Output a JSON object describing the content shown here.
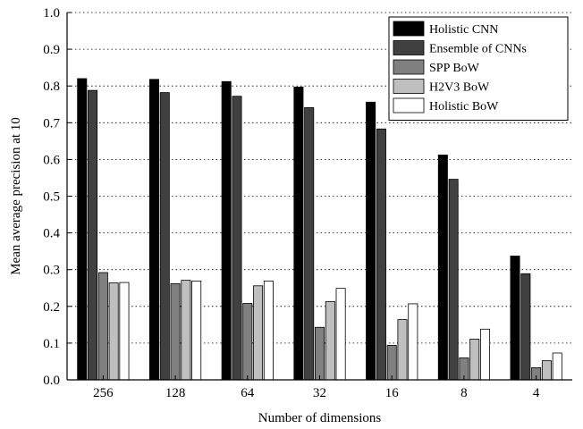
{
  "chart_data": {
    "type": "bar",
    "title": "",
    "xlabel": "Number of dimensions",
    "ylabel": "Mean average precision at 10",
    "ylim": [
      0,
      1.0
    ],
    "yticks": [
      "0.0",
      "0.1",
      "0.2",
      "0.3",
      "0.4",
      "0.5",
      "0.6",
      "0.7",
      "0.8",
      "0.9",
      "1.0"
    ],
    "grid": "y-dotted",
    "legend_position": "top-right",
    "categories": [
      "256",
      "128",
      "64",
      "32",
      "16",
      "8",
      "4"
    ],
    "series": [
      {
        "name": "Holistic CNN",
        "color": "#000000",
        "values": [
          0.82,
          0.818,
          0.812,
          0.797,
          0.756,
          0.612,
          0.337
        ]
      },
      {
        "name": "Ensemble of CNNs",
        "color": "#404040",
        "values": [
          0.788,
          0.782,
          0.772,
          0.741,
          0.683,
          0.546,
          0.289
        ]
      },
      {
        "name": "SPP BoW",
        "color": "#808080",
        "values": [
          0.292,
          0.262,
          0.208,
          0.143,
          0.094,
          0.06,
          0.033
        ]
      },
      {
        "name": "H2V3 BoW",
        "color": "#bfbfbf",
        "values": [
          0.264,
          0.271,
          0.256,
          0.213,
          0.164,
          0.111,
          0.052
        ]
      },
      {
        "name": "Holistic BoW",
        "color": "#ffffff",
        "values": [
          0.265,
          0.269,
          0.269,
          0.249,
          0.207,
          0.138,
          0.073
        ]
      }
    ]
  }
}
